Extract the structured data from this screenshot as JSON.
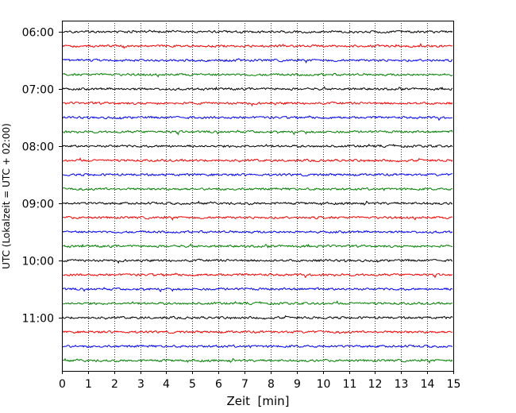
{
  "chart_data": {
    "type": "line",
    "subtype": "helicorder (seismogram drum plot)",
    "title": "",
    "xlabel": "Zeit  [min]",
    "ylabel": "UTC (Lokalzeit = UTC + 02:00)",
    "xlim": [
      0,
      15
    ],
    "x_ticks": [
      "0",
      "1",
      "2",
      "3",
      "4",
      "5",
      "6",
      "7",
      "8",
      "9",
      "10",
      "11",
      "12",
      "13",
      "14",
      "15"
    ],
    "y_tick_labels": [
      "06:00",
      "07:00",
      "08:00",
      "09:00",
      "10:00",
      "11:00"
    ],
    "grid": "vertical dotted lines at every minute",
    "legend": "none",
    "trace_interval_minutes": 15,
    "start_time": "06:00",
    "trace_count": 24,
    "trace_color_cycle": [
      "#000000",
      "#ff0000",
      "#0000ff",
      "#008000"
    ],
    "traces": [
      {
        "start": "06:00",
        "color": "#000000"
      },
      {
        "start": "06:15",
        "color": "#ff0000"
      },
      {
        "start": "06:30",
        "color": "#0000ff"
      },
      {
        "start": "06:45",
        "color": "#008000"
      },
      {
        "start": "07:00",
        "color": "#000000"
      },
      {
        "start": "07:15",
        "color": "#ff0000"
      },
      {
        "start": "07:30",
        "color": "#0000ff"
      },
      {
        "start": "07:45",
        "color": "#008000"
      },
      {
        "start": "08:00",
        "color": "#000000"
      },
      {
        "start": "08:15",
        "color": "#ff0000"
      },
      {
        "start": "08:30",
        "color": "#0000ff"
      },
      {
        "start": "08:45",
        "color": "#008000"
      },
      {
        "start": "09:00",
        "color": "#000000"
      },
      {
        "start": "09:15",
        "color": "#ff0000"
      },
      {
        "start": "09:30",
        "color": "#0000ff"
      },
      {
        "start": "09:45",
        "color": "#008000"
      },
      {
        "start": "10:00",
        "color": "#000000"
      },
      {
        "start": "10:15",
        "color": "#ff0000"
      },
      {
        "start": "10:30",
        "color": "#0000ff"
      },
      {
        "start": "10:45",
        "color": "#008000"
      },
      {
        "start": "11:00",
        "color": "#000000"
      },
      {
        "start": "11:15",
        "color": "#ff0000"
      },
      {
        "start": "11:30",
        "color": "#0000ff"
      },
      {
        "start": "11:45",
        "color": "#008000"
      }
    ]
  }
}
